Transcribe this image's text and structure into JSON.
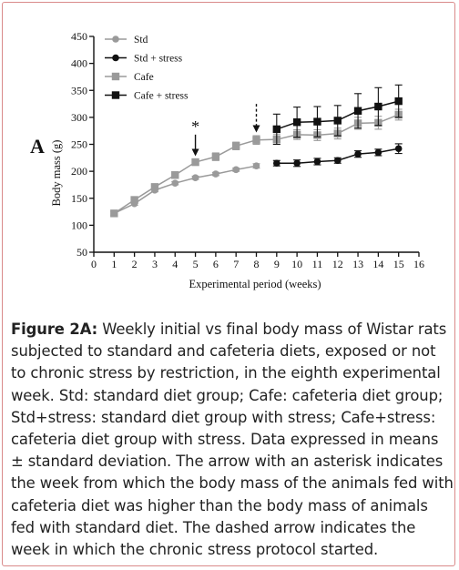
{
  "panel_label": "A",
  "chart_data": {
    "type": "line",
    "xlabel": "Experimental period (weeks)",
    "ylabel": "Body mass (g)",
    "xlim": [
      0,
      16
    ],
    "ylim": [
      50,
      450
    ],
    "x_ticks": [
      0,
      1,
      2,
      3,
      4,
      5,
      6,
      7,
      8,
      9,
      10,
      11,
      12,
      13,
      14,
      15,
      16
    ],
    "y_ticks": [
      50,
      100,
      150,
      200,
      250,
      300,
      350,
      400,
      450
    ],
    "legend_position": "top-left",
    "series": [
      {
        "name": "Std",
        "color": "#9a9a9a",
        "marker": "circle",
        "x": [
          1,
          2,
          3,
          4,
          5,
          6,
          7,
          8
        ],
        "y": [
          122,
          140,
          165,
          178,
          188,
          195,
          203,
          210
        ],
        "err": [
          3,
          3,
          3,
          3,
          3,
          3,
          3,
          4
        ]
      },
      {
        "name": "Std + stress",
        "color": "#111111",
        "marker": "circle",
        "x": [
          9,
          10,
          11,
          12,
          13,
          14,
          15
        ],
        "y": [
          215,
          215,
          218,
          220,
          232,
          235,
          242
        ],
        "err": [
          5,
          6,
          6,
          5,
          6,
          6,
          9
        ]
      },
      {
        "name": "Cafe",
        "color": "#9a9a9a",
        "marker": "square",
        "x": [
          1,
          2,
          3,
          4,
          5,
          6,
          7,
          8,
          9,
          10,
          11,
          12,
          13,
          14,
          15
        ],
        "y": [
          122,
          147,
          171,
          193,
          217,
          227,
          247,
          258,
          259,
          268,
          267,
          270,
          289,
          290,
          305
        ],
        "err": [
          4,
          4,
          5,
          6,
          6,
          7,
          7,
          8,
          9,
          9,
          10,
          10,
          11,
          12,
          10
        ]
      },
      {
        "name": "Cafe + stress",
        "color": "#111111",
        "marker": "square",
        "x": [
          9,
          10,
          11,
          12,
          13,
          14,
          15
        ],
        "y": [
          278,
          291,
          292,
          294,
          312,
          320,
          330
        ],
        "err": [
          28,
          28,
          28,
          28,
          32,
          35,
          30
        ]
      }
    ],
    "annotations": [
      {
        "kind": "arrow",
        "style": "solid",
        "x": 5,
        "label": "*",
        "y_from": 268,
        "y_to": 228
      },
      {
        "kind": "arrow",
        "style": "dashed",
        "x": 8,
        "label": "",
        "y_from": 325,
        "y_to": 272
      }
    ]
  },
  "caption": {
    "bold_label": "Figure 2A:",
    "text": " Weekly initial vs final body mass of Wistar rats subjected to standard and cafeteria diets, exposed or not to chronic stress by restriction, in the eighth experimental week. Std: standard diet group; Cafe: cafeteria diet group; Std+stress: standard diet group with stress; Cafe+stress: cafeteria diet group with stress. Data expressed in means ± standard deviation. The arrow with an asterisk indicates the week from which the body mass of the animals fed with cafeteria diet was higher than the body mass of animals fed with standard diet. The dashed arrow indicates the week in which the chronic stress protocol started."
  }
}
